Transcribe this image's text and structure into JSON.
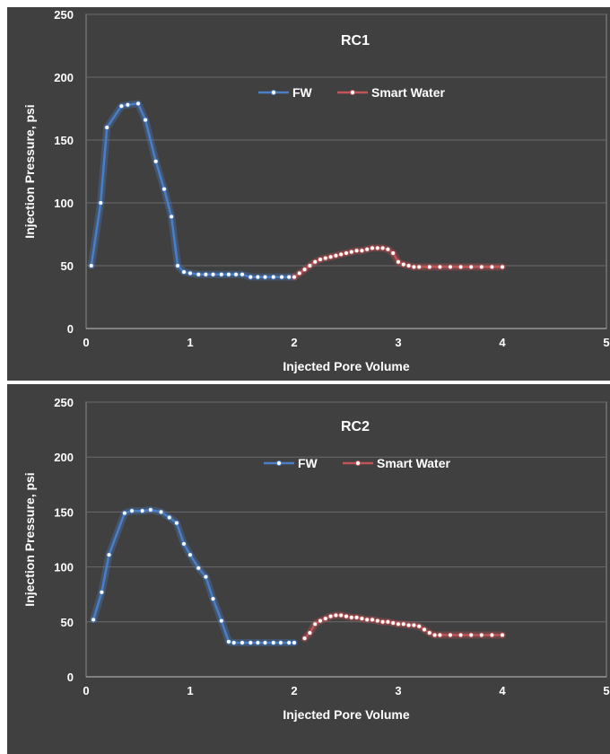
{
  "colors": {
    "fw": "#4a7ec6",
    "smart_water": "#c05456",
    "background": "#404040",
    "text": "#ffffff"
  },
  "chart_data": [
    {
      "type": "line",
      "title": "RC1",
      "xlabel": "Injected Pore Volume",
      "ylabel": "Injection Pressure, psi",
      "xlim": [
        0,
        5
      ],
      "ylim": [
        0,
        250
      ],
      "xticks": [
        "0",
        "1",
        "2",
        "3",
        "4",
        "5"
      ],
      "yticks": [
        "0",
        "50",
        "100",
        "150",
        "200",
        "250"
      ],
      "grid": true,
      "legend": "top-center",
      "series": [
        {
          "name": "FW",
          "color": "#4a7ec6",
          "x": [
            0.05,
            0.14,
            0.2,
            0.34,
            0.4,
            0.5,
            0.57,
            0.67,
            0.75,
            0.82,
            0.88,
            0.94,
            1.0,
            1.08,
            1.15,
            1.22,
            1.3,
            1.37,
            1.44,
            1.5,
            1.58,
            1.65,
            1.72,
            1.8,
            1.88,
            1.95,
            2.0
          ],
          "y": [
            50,
            100,
            160,
            177,
            178,
            179,
            166,
            133,
            111,
            89,
            50,
            45,
            44,
            43,
            43,
            43,
            43,
            43,
            43,
            43,
            41,
            41,
            41,
            41,
            41,
            41,
            41
          ]
        },
        {
          "name": "Smart Water",
          "color": "#c05456",
          "x": [
            2.0,
            2.05,
            2.1,
            2.15,
            2.2,
            2.25,
            2.3,
            2.35,
            2.4,
            2.45,
            2.5,
            2.55,
            2.6,
            2.65,
            2.7,
            2.75,
            2.8,
            2.85,
            2.9,
            2.95,
            3.0,
            3.05,
            3.1,
            3.15,
            3.2,
            3.3,
            3.4,
            3.5,
            3.6,
            3.7,
            3.8,
            3.9,
            4.0
          ],
          "y": [
            41,
            44,
            47,
            50,
            53,
            55,
            56,
            57,
            58,
            59,
            60,
            61,
            62,
            62,
            63,
            64,
            64,
            64,
            63,
            60,
            53,
            51,
            50,
            49,
            49,
            49,
            49,
            49,
            49,
            49,
            49,
            49,
            49
          ]
        }
      ]
    },
    {
      "type": "line",
      "title": "RC2",
      "xlabel": "Injected Pore Volume",
      "ylabel": "Injection Pressure, psi",
      "xlim": [
        0,
        5
      ],
      "ylim": [
        0,
        250
      ],
      "xticks": [
        "0",
        "1",
        "2",
        "3",
        "4",
        "5"
      ],
      "yticks": [
        "0",
        "50",
        "100",
        "150",
        "200",
        "250"
      ],
      "grid": true,
      "legend": "top-center",
      "series": [
        {
          "name": "FW",
          "color": "#4a7ec6",
          "x": [
            0.07,
            0.15,
            0.22,
            0.37,
            0.44,
            0.54,
            0.62,
            0.72,
            0.8,
            0.87,
            0.94,
            1.0,
            1.08,
            1.15,
            1.22,
            1.3,
            1.37,
            1.42,
            1.5,
            1.58,
            1.65,
            1.72,
            1.8,
            1.87,
            1.95,
            2.0
          ],
          "y": [
            52,
            77,
            111,
            149,
            151,
            151,
            152,
            150,
            145,
            140,
            121,
            111,
            99,
            91,
            71,
            51,
            32,
            31,
            31,
            31,
            31,
            31,
            31,
            31,
            31,
            31
          ]
        },
        {
          "name": "Smart Water",
          "color": "#c05456",
          "x": [
            2.1,
            2.15,
            2.2,
            2.25,
            2.3,
            2.35,
            2.4,
            2.45,
            2.5,
            2.55,
            2.6,
            2.65,
            2.7,
            2.75,
            2.8,
            2.85,
            2.9,
            2.95,
            3.0,
            3.05,
            3.1,
            3.15,
            3.2,
            3.25,
            3.3,
            3.35,
            3.4,
            3.5,
            3.6,
            3.7,
            3.8,
            3.9,
            4.0
          ],
          "y": [
            35,
            40,
            48,
            51,
            53,
            55,
            56,
            56,
            55,
            54,
            54,
            53,
            52,
            52,
            51,
            50,
            50,
            49,
            48,
            48,
            47,
            47,
            46,
            43,
            40,
            38,
            38,
            38,
            38,
            38,
            38,
            38,
            38
          ]
        }
      ]
    }
  ]
}
